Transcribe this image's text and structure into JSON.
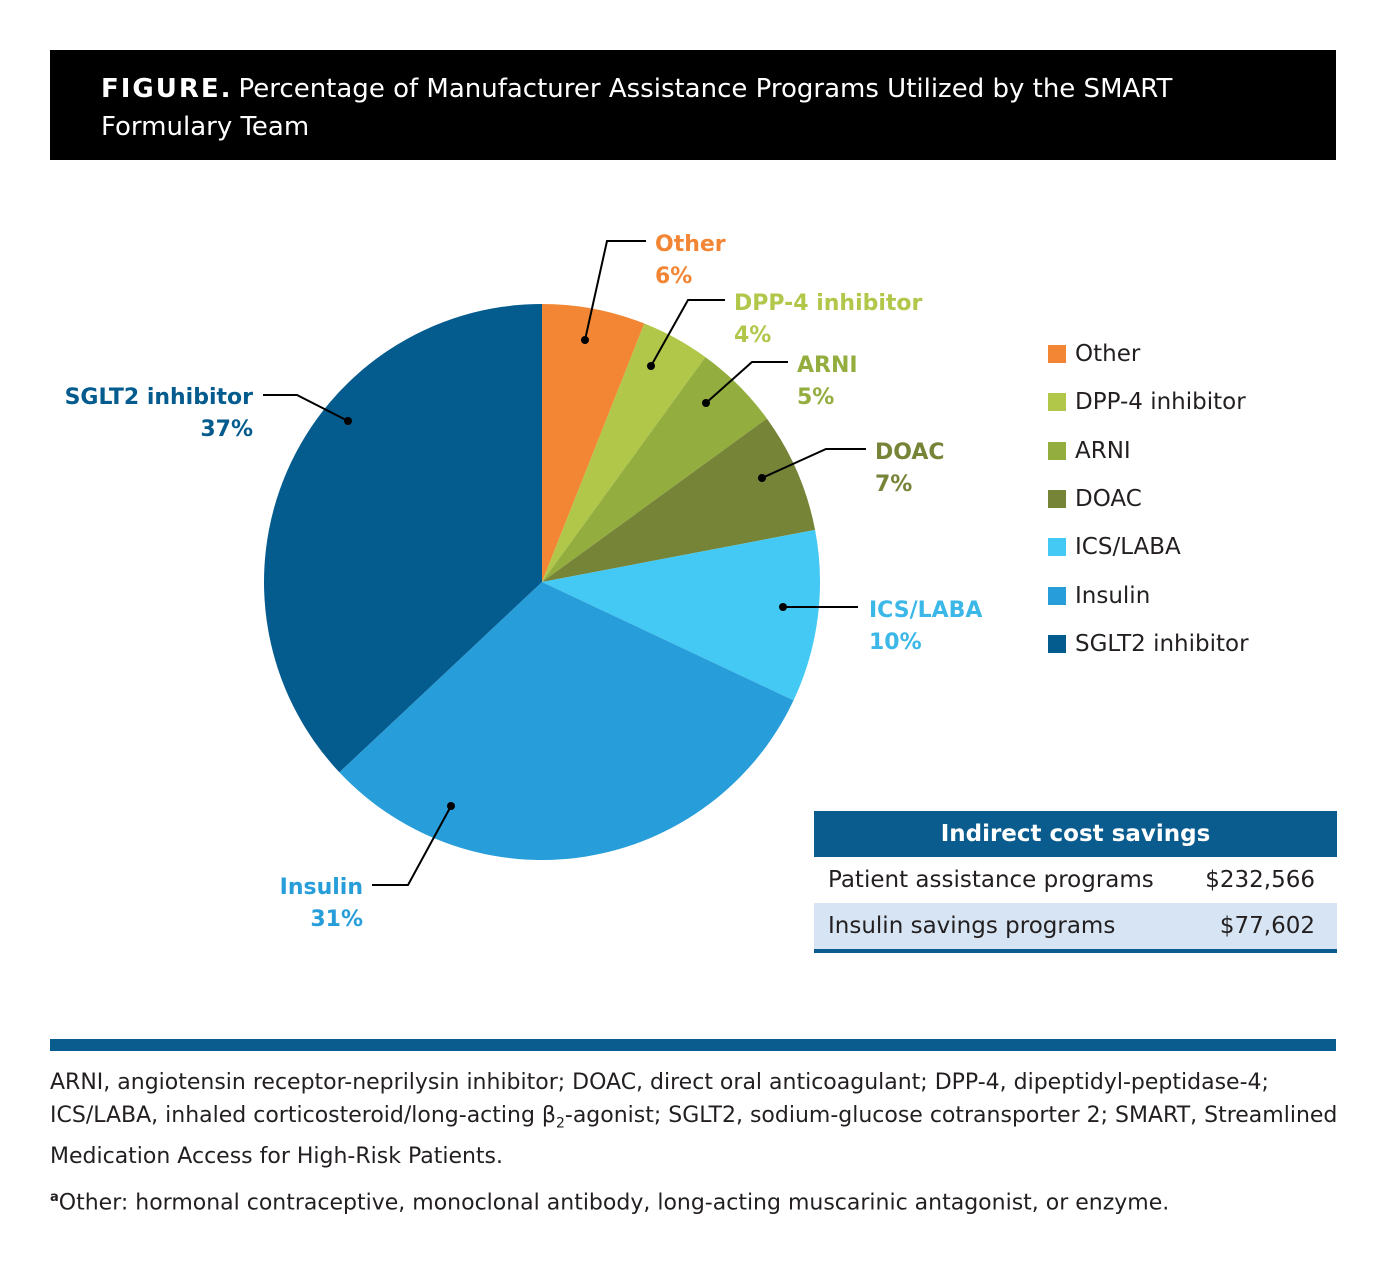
{
  "header": {
    "tag": "FIGURE.",
    "title": "Percentage of Manufacturer Assistance Programs Utilized by the SMART Formulary Team"
  },
  "chart_data": {
    "type": "pie",
    "title": "Percentage of Manufacturer Assistance Programs Utilized by the SMART Formulary Team",
    "unit": "%",
    "slices": [
      {
        "label": "Other",
        "value": 6,
        "display": "6%",
        "color": "#f28634"
      },
      {
        "label": "DPP-4 inhibitor",
        "value": 4,
        "display": "4%",
        "color": "#b0c74a"
      },
      {
        "label": "ARNI",
        "value": 5,
        "display": "5%",
        "color": "#93ad3e"
      },
      {
        "label": "DOAC",
        "value": 7,
        "display": "7%",
        "color": "#768438"
      },
      {
        "label": "ICS/LABA",
        "value": 10,
        "display": "10%",
        "color": "#44c8f4"
      },
      {
        "label": "Insulin",
        "value": 31,
        "display": "31%",
        "color": "#279dd9"
      },
      {
        "label": "SGLT2 inhibitor",
        "value": 37,
        "display": "37%",
        "color": "#045b8e"
      }
    ],
    "label_colors": {
      "Other": "#f28634",
      "DPP-4 inhibitor": "#b0c74a",
      "ARNI": "#93ad3e",
      "DOAC": "#768438",
      "ICS/LABA": "#3bb7e8",
      "Insulin": "#279dd9",
      "SGLT2 inhibitor": "#045b8e"
    },
    "legend_position": "right"
  },
  "savings_table": {
    "header": "Indirect cost savings",
    "rows": [
      {
        "label": "Patient assistance programs",
        "value": "$232,566"
      },
      {
        "label": "Insulin savings programs",
        "value": "$77,602"
      }
    ]
  },
  "footnotes": {
    "abbreviations_part1": "ARNI, angiotensin receptor-neprilysin inhibitor; DOAC, direct oral anticoagulant; DPP-4, dipeptidyl-peptidase-4; ICS/LABA, inhaled corticosteroid/long-acting β",
    "subscript": "2",
    "abbreviations_part2": "-agonist; SGLT2, sodium-glucose cotransporter 2; SMART, Streamlined Medication Access for High-Risk Patients.",
    "marker": "a",
    "other_note": "Other: hormonal contraceptive, monoclonal antibody, long-acting muscarinic antagonist, or enzyme."
  }
}
